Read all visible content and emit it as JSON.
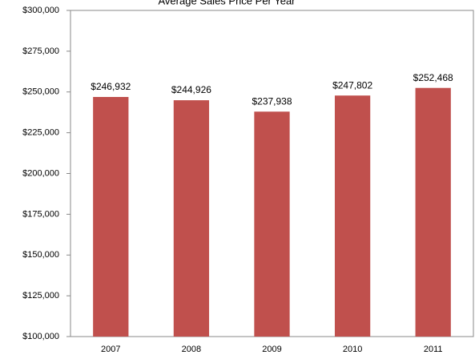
{
  "chart_data": {
    "type": "bar",
    "title": "Average Sales Price Per Year",
    "categories": [
      "2007",
      "2008",
      "2009",
      "2010",
      "2011"
    ],
    "values": [
      246932,
      244926,
      237938,
      247802,
      252468
    ],
    "value_labels": [
      "$246,932",
      "$244,926",
      "$237,938",
      "$247,802",
      "$252,468"
    ],
    "color": "#c0504d",
    "ylim": [
      100000,
      300000
    ],
    "yticks": [
      {
        "value": 100000,
        "label": "$100,000"
      },
      {
        "value": 125000,
        "label": "$125,000"
      },
      {
        "value": 150000,
        "label": "$150,000"
      },
      {
        "value": 175000,
        "label": "$175,000"
      },
      {
        "value": 200000,
        "label": "$200,000"
      },
      {
        "value": 225000,
        "label": "$225,000"
      },
      {
        "value": 250000,
        "label": "$250,000"
      },
      {
        "value": 275000,
        "label": "$275,000"
      },
      {
        "value": 300000,
        "label": "$300,000"
      }
    ],
    "grid": false
  }
}
